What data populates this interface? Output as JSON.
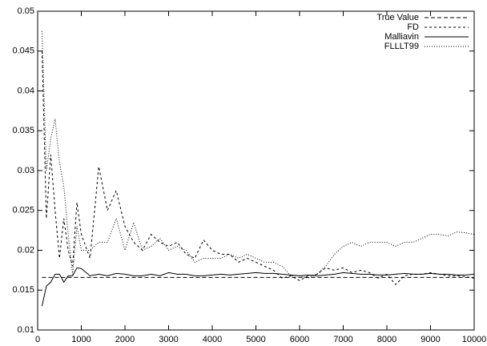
{
  "chart_data": {
    "type": "line",
    "x": [
      100,
      200,
      300,
      400,
      500,
      600,
      700,
      800,
      900,
      1000,
      1200,
      1400,
      1600,
      1800,
      2000,
      2200,
      2400,
      2600,
      2800,
      3000,
      3200,
      3400,
      3600,
      3800,
      4000,
      4200,
      4400,
      4600,
      4800,
      5000,
      5200,
      5400,
      5600,
      5800,
      6000,
      6200,
      6400,
      6600,
      6800,
      7000,
      7200,
      7400,
      7600,
      7800,
      8000,
      8200,
      8400,
      8600,
      8800,
      9000,
      9200,
      9400,
      9600,
      9800,
      10000
    ],
    "series": [
      {
        "name": "True Value",
        "color": "#000000",
        "values": [
          0.0166,
          0.0166,
          0.0166,
          0.0166,
          0.0166,
          0.0166,
          0.0166,
          0.0166,
          0.0166,
          0.0166,
          0.0166,
          0.0166,
          0.0166,
          0.0166,
          0.0166,
          0.0166,
          0.0166,
          0.0166,
          0.0166,
          0.0166,
          0.0166,
          0.0166,
          0.0166,
          0.0166,
          0.0166,
          0.0166,
          0.0166,
          0.0166,
          0.0166,
          0.0166,
          0.0166,
          0.0166,
          0.0166,
          0.0166,
          0.0166,
          0.0166,
          0.0166,
          0.0166,
          0.0166,
          0.0166,
          0.0166,
          0.0166,
          0.0166,
          0.0166,
          0.0166,
          0.0166,
          0.0166,
          0.0166,
          0.0166,
          0.0166,
          0.0166,
          0.0166,
          0.0166,
          0.0166,
          0.0166
        ]
      },
      {
        "name": "FD",
        "color": "#000000",
        "values": [
          0.045,
          0.024,
          0.032,
          0.025,
          0.019,
          0.024,
          0.02,
          0.018,
          0.026,
          0.022,
          0.019,
          0.0305,
          0.025,
          0.0275,
          0.023,
          0.021,
          0.02,
          0.022,
          0.021,
          0.0205,
          0.021,
          0.0195,
          0.019,
          0.0213,
          0.02,
          0.0195,
          0.0195,
          0.0185,
          0.019,
          0.0185,
          0.018,
          0.0175,
          0.0165,
          0.0168,
          0.0162,
          0.0168,
          0.017,
          0.0178,
          0.0175,
          0.0178,
          0.0172,
          0.0175,
          0.0172,
          0.0165,
          0.017,
          0.0157,
          0.0168,
          0.017,
          0.017,
          0.0172,
          0.017,
          0.0168,
          0.0168,
          0.0167,
          0.0165
        ]
      },
      {
        "name": "Malliavin",
        "color": "#000000",
        "values": [
          0.013,
          0.0155,
          0.016,
          0.017,
          0.017,
          0.016,
          0.0168,
          0.0168,
          0.0178,
          0.0177,
          0.0168,
          0.017,
          0.0168,
          0.0171,
          0.017,
          0.0168,
          0.0168,
          0.017,
          0.0168,
          0.0172,
          0.017,
          0.017,
          0.0168,
          0.0168,
          0.0169,
          0.017,
          0.0169,
          0.017,
          0.0171,
          0.0172,
          0.0171,
          0.0171,
          0.017,
          0.0169,
          0.0168,
          0.0169,
          0.0168,
          0.0169,
          0.017,
          0.0172,
          0.0171,
          0.017,
          0.017,
          0.0169,
          0.0169,
          0.017,
          0.0171,
          0.017,
          0.017,
          0.0171,
          0.017,
          0.017,
          0.0169,
          0.0169,
          0.017
        ]
      },
      {
        "name": "FLLLT99",
        "color": "#000000",
        "values": [
          0.0475,
          0.03,
          0.034,
          0.0365,
          0.031,
          0.028,
          0.022,
          0.017,
          0.023,
          0.02,
          0.02,
          0.021,
          0.021,
          0.024,
          0.02,
          0.0235,
          0.02,
          0.0205,
          0.0215,
          0.02,
          0.0205,
          0.02,
          0.0185,
          0.019,
          0.019,
          0.019,
          0.0195,
          0.019,
          0.0195,
          0.019,
          0.0185,
          0.0185,
          0.018,
          0.0168,
          0.0168,
          0.0165,
          0.017,
          0.018,
          0.0195,
          0.0205,
          0.021,
          0.0205,
          0.021,
          0.021,
          0.021,
          0.0205,
          0.021,
          0.021,
          0.0215,
          0.022,
          0.022,
          0.0218,
          0.0223,
          0.0222,
          0.022
        ]
      }
    ],
    "xlim": [
      0,
      10000
    ],
    "xticks": [
      0,
      1000,
      2000,
      3000,
      4000,
      5000,
      6000,
      7000,
      8000,
      9000,
      10000
    ],
    "ylim": [
      0.01,
      0.05
    ],
    "yticks": [
      0.01,
      0.015,
      0.02,
      0.025,
      0.03,
      0.035,
      0.04,
      0.045,
      0.05
    ],
    "legend": "top-right"
  }
}
